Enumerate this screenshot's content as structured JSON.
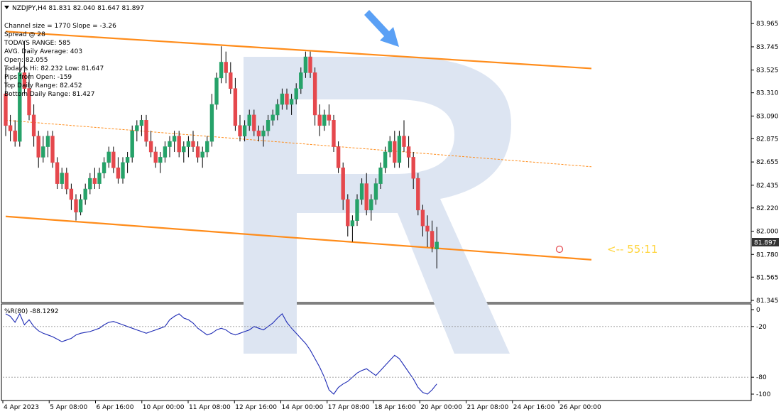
{
  "symbol_header": "NZDJPY,H4  81.831 82.040 81.647 81.897",
  "info_lines": [
    "Channel size = 1770 Slope = -3.26",
    "Spread @ 28",
    "TODAYS RANGE: 585",
    "AVG. Daily Average: 403",
    "Open: 82.055",
    "Today's Hi: 82.232  Low: 81.647",
    "Pips from Open: -159",
    "Top Daily Range: 82.452",
    "Bottom Daily Range: 81.427"
  ],
  "timer_text": "<-- 55:11",
  "indicator_label": "%R(80) -88.1292",
  "colors": {
    "bull": "#26a269",
    "bear": "#e5484d",
    "channel": "#ff8c1a",
    "wpr": "#1e2bb5",
    "arrow": "#5aa0f5",
    "price_tag_bg": "#333333",
    "watermark": "#dde5f2"
  },
  "chart_data": [
    {
      "type": "candlestick",
      "symbol": "NZDJPY",
      "timeframe": "H4",
      "ylim": [
        81.345,
        84.0
      ],
      "y_ticks": [
        "83.965",
        "83.745",
        "83.525",
        "83.310",
        "83.090",
        "82.875",
        "82.655",
        "82.435",
        "82.220",
        "82.000",
        "81.780",
        "81.565",
        "81.345"
      ],
      "x_ticks": [
        "4 Apr 2023",
        "5 Apr 08:00",
        "6 Apr 16:00",
        "10 Apr 00:00",
        "11 Apr 08:00",
        "12 Apr 16:00",
        "14 Apr 00:00",
        "17 Apr 08:00",
        "18 Apr 16:00",
        "20 Apr 00:00",
        "21 Apr 08:00",
        "24 Apr 16:00",
        "26 Apr 00:00"
      ],
      "current_price": "81.897",
      "channel": {
        "upper": [
          [
            0,
            83.89
          ],
          [
            125,
            83.54
          ]
        ],
        "middle": [
          [
            0,
            83.05
          ],
          [
            125,
            82.61
          ]
        ],
        "lower": [
          [
            0,
            82.14
          ],
          [
            125,
            81.73
          ]
        ]
      },
      "candles": [
        [
          83.3,
          83.55,
          82.9,
          83.0
        ],
        [
          83.0,
          83.1,
          82.85,
          82.95
        ],
        [
          82.95,
          83.05,
          82.8,
          82.85
        ],
        [
          82.85,
          83.6,
          82.8,
          83.5
        ],
        [
          83.5,
          83.8,
          83.3,
          83.35
        ],
        [
          83.35,
          83.5,
          83.05,
          83.1
        ],
        [
          83.1,
          83.2,
          82.8,
          82.9
        ],
        [
          82.9,
          82.95,
          82.6,
          82.7
        ],
        [
          82.7,
          82.9,
          82.65,
          82.8
        ],
        [
          82.8,
          82.95,
          82.7,
          82.9
        ],
        [
          82.9,
          82.95,
          82.6,
          82.65
        ],
        [
          82.65,
          82.7,
          82.4,
          82.45
        ],
        [
          82.45,
          82.6,
          82.4,
          82.55
        ],
        [
          82.55,
          82.6,
          82.35,
          82.4
        ],
        [
          82.4,
          82.45,
          82.2,
          82.3
        ],
        [
          82.3,
          82.35,
          82.1,
          82.18
        ],
        [
          82.18,
          82.35,
          82.15,
          82.3
        ],
        [
          82.3,
          82.45,
          82.25,
          82.4
        ],
        [
          82.4,
          82.55,
          82.35,
          82.5
        ],
        [
          82.5,
          82.6,
          82.4,
          82.45
        ],
        [
          82.45,
          82.6,
          82.4,
          82.55
        ],
        [
          82.55,
          82.7,
          82.5,
          82.65
        ],
        [
          82.65,
          82.8,
          82.6,
          82.75
        ],
        [
          82.75,
          82.8,
          82.55,
          82.6
        ],
        [
          82.6,
          82.7,
          82.45,
          82.5
        ],
        [
          82.5,
          82.7,
          82.45,
          82.65
        ],
        [
          82.65,
          82.75,
          82.55,
          82.7
        ],
        [
          82.7,
          83.0,
          82.65,
          82.95
        ],
        [
          82.95,
          83.05,
          82.85,
          83.0
        ],
        [
          83.0,
          83.1,
          82.9,
          83.05
        ],
        [
          83.05,
          83.1,
          82.8,
          82.85
        ],
        [
          82.85,
          82.95,
          82.7,
          82.75
        ],
        [
          82.75,
          82.8,
          82.6,
          82.65
        ],
        [
          82.65,
          82.75,
          82.55,
          82.7
        ],
        [
          82.7,
          82.85,
          82.65,
          82.8
        ],
        [
          82.8,
          82.9,
          82.7,
          82.85
        ],
        [
          82.85,
          82.95,
          82.75,
          82.9
        ],
        [
          82.9,
          82.95,
          82.7,
          82.75
        ],
        [
          82.75,
          82.85,
          82.65,
          82.8
        ],
        [
          82.8,
          82.9,
          82.7,
          82.85
        ],
        [
          82.85,
          82.95,
          82.75,
          82.8
        ],
        [
          82.8,
          82.85,
          82.65,
          82.7
        ],
        [
          82.7,
          82.8,
          82.6,
          82.75
        ],
        [
          82.75,
          82.9,
          82.7,
          82.85
        ],
        [
          82.85,
          83.3,
          82.8,
          83.2
        ],
        [
          83.2,
          83.5,
          83.15,
          83.45
        ],
        [
          83.45,
          83.75,
          83.4,
          83.6
        ],
        [
          83.6,
          83.7,
          83.4,
          83.5
        ],
        [
          83.5,
          83.6,
          83.3,
          83.35
        ],
        [
          83.35,
          83.45,
          82.95,
          83.0
        ],
        [
          83.0,
          83.1,
          82.85,
          82.9
        ],
        [
          82.9,
          83.05,
          82.85,
          83.0
        ],
        [
          83.0,
          83.15,
          82.95,
          83.1
        ],
        [
          83.1,
          83.15,
          82.9,
          82.95
        ],
        [
          82.95,
          83.0,
          82.85,
          82.9
        ],
        [
          82.9,
          83.0,
          82.8,
          82.95
        ],
        [
          82.95,
          83.1,
          82.9,
          83.05
        ],
        [
          83.05,
          83.15,
          83.0,
          83.1
        ],
        [
          83.1,
          83.25,
          83.05,
          83.2
        ],
        [
          83.2,
          83.35,
          83.15,
          83.3
        ],
        [
          83.3,
          83.35,
          83.15,
          83.2
        ],
        [
          83.2,
          83.3,
          83.1,
          83.25
        ],
        [
          83.25,
          83.4,
          83.2,
          83.35
        ],
        [
          83.35,
          83.55,
          83.3,
          83.5
        ],
        [
          83.5,
          83.7,
          83.45,
          83.65
        ],
        [
          83.65,
          83.7,
          83.45,
          83.5
        ],
        [
          83.5,
          83.55,
          83.0,
          83.1
        ],
        [
          83.1,
          83.2,
          82.9,
          83.0
        ],
        [
          83.0,
          83.15,
          82.95,
          83.1
        ],
        [
          83.1,
          83.2,
          83.0,
          83.05
        ],
        [
          83.05,
          83.1,
          82.75,
          82.8
        ],
        [
          82.8,
          82.85,
          82.55,
          82.6
        ],
        [
          82.6,
          82.65,
          82.2,
          82.3
        ],
        [
          82.3,
          82.35,
          81.95,
          82.05
        ],
        [
          82.05,
          82.15,
          81.9,
          82.1
        ],
        [
          82.1,
          82.35,
          82.05,
          82.3
        ],
        [
          82.3,
          82.5,
          82.25,
          82.45
        ],
        [
          82.45,
          82.55,
          82.15,
          82.2
        ],
        [
          82.2,
          82.35,
          82.1,
          82.3
        ],
        [
          82.3,
          82.5,
          82.25,
          82.45
        ],
        [
          82.45,
          82.65,
          82.4,
          82.6
        ],
        [
          82.6,
          82.8,
          82.55,
          82.75
        ],
        [
          82.75,
          82.9,
          82.7,
          82.85
        ],
        [
          82.85,
          82.95,
          82.6,
          82.65
        ],
        [
          82.65,
          82.95,
          82.6,
          82.9
        ],
        [
          82.9,
          83.05,
          82.75,
          82.8
        ],
        [
          82.8,
          82.9,
          82.6,
          82.7
        ],
        [
          82.7,
          82.75,
          82.4,
          82.5
        ],
        [
          82.5,
          82.55,
          82.15,
          82.2
        ],
        [
          82.2,
          82.25,
          81.95,
          82.05
        ],
        [
          82.05,
          82.15,
          81.85,
          82.0
        ],
        [
          82.0,
          82.1,
          81.8,
          81.85
        ],
        [
          81.831,
          82.04,
          81.647,
          81.897
        ]
      ]
    },
    {
      "type": "line",
      "name": "%R(80)",
      "ylim": [
        -100,
        0
      ],
      "y_ticks": [
        "0",
        "-20",
        "-80",
        "-100"
      ],
      "values": [
        -5,
        -8,
        -15,
        -5,
        -18,
        -12,
        -20,
        -25,
        -28,
        -30,
        -32,
        -35,
        -38,
        -36,
        -34,
        -30,
        -28,
        -27,
        -26,
        -24,
        -22,
        -18,
        -15,
        -14,
        -16,
        -18,
        -20,
        -22,
        -24,
        -26,
        -28,
        -26,
        -24,
        -22,
        -20,
        -12,
        -8,
        -5,
        -10,
        -12,
        -16,
        -22,
        -26,
        -30,
        -28,
        -24,
        -22,
        -24,
        -28,
        -30,
        -28,
        -26,
        -24,
        -20,
        -22,
        -24,
        -20,
        -16,
        -10,
        -5,
        -15,
        -22,
        -28,
        -34,
        -40,
        -48,
        -58,
        -68,
        -80,
        -95,
        -102,
        -92,
        -88,
        -85,
        -80,
        -75,
        -72,
        -70,
        -74,
        -78,
        -72,
        -66,
        -60,
        -54,
        -58,
        -66,
        -74,
        -82,
        -92,
        -98,
        -100,
        -95,
        -88
      ]
    }
  ]
}
